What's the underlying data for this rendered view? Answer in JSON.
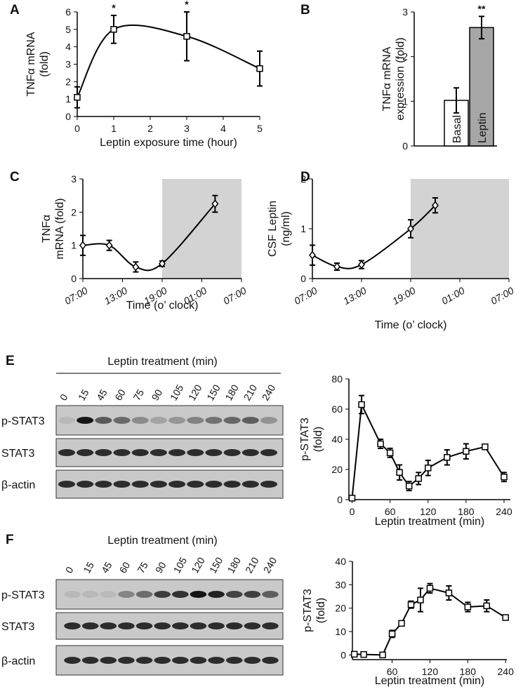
{
  "chart_data": [
    {
      "type": "line",
      "panel": "A",
      "ylabel": [
        "TNFα mRNA",
        "(fold)"
      ],
      "xlabel": "Leptin exposure time (hour)",
      "x": [
        0,
        1,
        3,
        5
      ],
      "values": [
        1.1,
        5.0,
        4.6,
        2.75
      ],
      "errors": [
        0.6,
        0.8,
        1.4,
        1.0
      ],
      "significance": [
        null,
        "*",
        "*",
        null
      ],
      "xlim": [
        0,
        5
      ],
      "xticks": [
        0,
        1,
        2,
        3,
        4,
        5
      ],
      "ylim": [
        0,
        6
      ],
      "yticks": [
        0,
        1,
        2,
        3,
        4,
        5,
        6
      ],
      "smooth": true,
      "marker": "square",
      "color": "#000000"
    },
    {
      "type": "bar",
      "panel": "B",
      "ylabel": [
        "TNFα mRNA",
        "expression (fold)"
      ],
      "categories": [
        "Basal",
        "Leptin"
      ],
      "values": [
        1.02,
        2.65
      ],
      "errors": [
        0.28,
        0.25
      ],
      "significance": [
        null,
        "**"
      ],
      "colors": [
        "#ffffff",
        "#a6a6a6"
      ],
      "ylim": [
        0,
        3
      ],
      "yticks": [
        0,
        1,
        2,
        3
      ]
    },
    {
      "type": "line",
      "panel": "C",
      "ylabel": [
        "TNFα",
        "mRNA (fold)"
      ],
      "xlabel": "Time (o’ clock)",
      "x": [
        0,
        4,
        8,
        12,
        20
      ],
      "values": [
        1.0,
        1.0,
        0.35,
        0.45,
        2.25
      ],
      "errors": [
        0.3,
        0.15,
        0.15,
        0.08,
        0.25
      ],
      "xlim": [
        0,
        24
      ],
      "xticks": [
        {
          "value": 0,
          "label": "07:00"
        },
        {
          "value": 6,
          "label": "13:00"
        },
        {
          "value": 12,
          "label": "19:00"
        },
        {
          "value": 18,
          "label": "01:00"
        },
        {
          "value": 24,
          "label": "07:00"
        }
      ],
      "ylim": [
        0,
        3
      ],
      "yticks": [
        0,
        1,
        2,
        3
      ],
      "shade": [
        12,
        24
      ],
      "smooth": true,
      "marker": "diamond",
      "color": "#000000"
    },
    {
      "type": "line",
      "panel": "D",
      "ylabel": [
        "CSF Leptin",
        "(ng/ml)"
      ],
      "xlabel": "Time (o’ clock)",
      "x": [
        0,
        3,
        6,
        12,
        15
      ],
      "values": [
        0.47,
        0.24,
        0.28,
        1.0,
        1.47
      ],
      "errors": [
        0.2,
        0.07,
        0.08,
        0.18,
        0.15
      ],
      "xlim": [
        0,
        24
      ],
      "xticks": [
        {
          "value": 0,
          "label": "07:00"
        },
        {
          "value": 6,
          "label": "13:00"
        },
        {
          "value": 12,
          "label": "19:00"
        },
        {
          "value": 18,
          "label": "01:00"
        },
        {
          "value": 24,
          "label": "07:00"
        }
      ],
      "ylim": [
        0,
        2
      ],
      "yticks": [
        0,
        1,
        2
      ],
      "shade": [
        12,
        24
      ],
      "smooth": true,
      "marker": "diamond",
      "color": "#000000"
    },
    {
      "type": "line",
      "ylabel": [
        "p-STAT3",
        "(fold)"
      ],
      "xlabel": "Leptin treatment (min)",
      "x": [
        0,
        15,
        45,
        60,
        75,
        90,
        105,
        120,
        150,
        180,
        210,
        240
      ],
      "values": [
        1,
        63,
        37,
        31,
        18,
        9,
        14,
        21,
        28,
        32,
        35,
        15
      ],
      "errors": [
        1,
        6,
        3,
        3,
        5,
        3,
        4,
        5,
        5,
        5,
        1,
        3
      ],
      "xlim": [
        -5,
        250
      ],
      "xticks": [
        0,
        60,
        120,
        180,
        240
      ],
      "ylim": [
        0,
        80
      ],
      "yticks": [
        0,
        20,
        40,
        60,
        80
      ],
      "smooth": false,
      "marker": "square",
      "color": "#000000"
    },
    {
      "type": "line",
      "ylabel": [
        "p-STAT3",
        "(fold)"
      ],
      "xlabel": "Leptin treatment (min)",
      "x": [
        0,
        15,
        45,
        60,
        75,
        90,
        105,
        120,
        150,
        180,
        210,
        240
      ],
      "values": [
        0.3,
        0.2,
        0,
        9,
        13.5,
        21.5,
        23.5,
        28.5,
        26.5,
        20.5,
        21,
        16
      ],
      "errors": [
        0.5,
        0.5,
        0.3,
        1.5,
        1,
        1.5,
        5,
        2,
        3,
        2,
        2.5,
        0.5
      ],
      "xlim": [
        -3,
        242
      ],
      "xticks": [
        60,
        120,
        180,
        240
      ],
      "ylim": [
        -2,
        40
      ],
      "yticks": [
        0,
        10,
        20,
        30,
        40
      ],
      "smooth": false,
      "marker": "square",
      "color": "#000000"
    }
  ],
  "blots": [
    {
      "panel": "E",
      "title": "Leptin treatment  (min)",
      "lanes": [
        "0",
        "15",
        "45",
        "60",
        "75",
        "90",
        "105",
        "120",
        "150",
        "180",
        "210",
        "240"
      ],
      "rows": [
        "p-STAT3",
        "STAT3",
        "β-actin"
      ]
    },
    {
      "panel": "F",
      "title": "Leptin treatment (min)",
      "lanes": [
        "0",
        "15",
        "45",
        "60",
        "75",
        "90",
        "105",
        "120",
        "150",
        "180",
        "210",
        "240"
      ],
      "rows": [
        "p-STAT3",
        "STAT3",
        "β-actin"
      ]
    }
  ]
}
